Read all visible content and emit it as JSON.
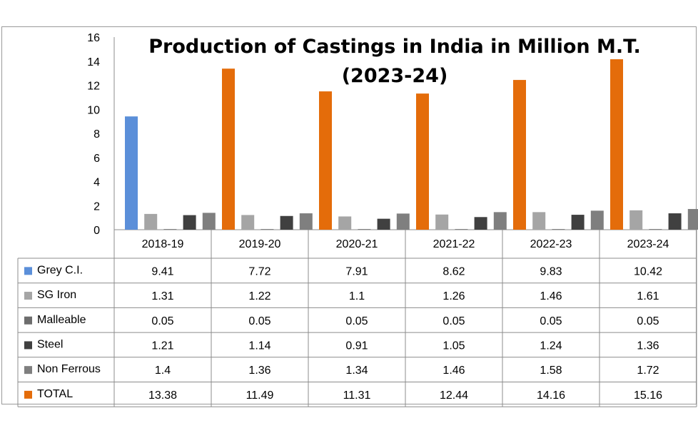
{
  "chart_data": {
    "type": "bar",
    "title": "Production of Castings in India in Million M.T.",
    "subtitle": "(2023-24)",
    "categories": [
      "2018-19",
      "2019-20",
      "2020-21",
      "2021-22",
      "2022-23",
      "2023-24"
    ],
    "series": [
      {
        "name": "Grey C.I.",
        "color": "#5b8fd9",
        "values": [
          9.41,
          7.72,
          7.91,
          8.62,
          9.83,
          10.42
        ]
      },
      {
        "name": "SG Iron",
        "color": "#a5a5a5",
        "values": [
          1.31,
          1.22,
          1.1,
          1.26,
          1.46,
          1.61
        ]
      },
      {
        "name": "Malleable",
        "color": "#6d6d6d",
        "values": [
          0.05,
          0.05,
          0.05,
          0.05,
          0.05,
          0.05
        ]
      },
      {
        "name": "Steel",
        "color": "#404040",
        "values": [
          1.21,
          1.14,
          0.91,
          1.05,
          1.24,
          1.36
        ]
      },
      {
        "name": "Non Ferrous",
        "color": "#7f7f7f",
        "values": [
          1.4,
          1.36,
          1.34,
          1.46,
          1.58,
          1.72
        ]
      },
      {
        "name": "TOTAL",
        "color": "#e46c0a",
        "values": [
          13.38,
          11.49,
          11.31,
          12.44,
          14.16,
          15.16
        ]
      }
    ],
    "value_labels": [
      [
        "9.41",
        "7.72",
        "7.91",
        "8.62",
        "9.83",
        "10.42"
      ],
      [
        "1.31",
        "1.22",
        "1.1",
        "1.26",
        "1.46",
        "1.61"
      ],
      [
        "0.05",
        "0.05",
        "0.05",
        "0.05",
        "0.05",
        "0.05"
      ],
      [
        "1.21",
        "1.14",
        "0.91",
        "1.05",
        "1.24",
        "1.36"
      ],
      [
        "1.4",
        "1.36",
        "1.34",
        "1.46",
        "1.58",
        "1.72"
      ],
      [
        "13.38",
        "11.49",
        "11.31",
        "12.44",
        "14.16",
        "15.16"
      ]
    ],
    "yticks": [
      "0",
      "2",
      "4",
      "6",
      "8",
      "10",
      "12",
      "14",
      "16"
    ],
    "ylim": [
      0,
      16
    ],
    "grid": false,
    "legend": "data-table"
  }
}
